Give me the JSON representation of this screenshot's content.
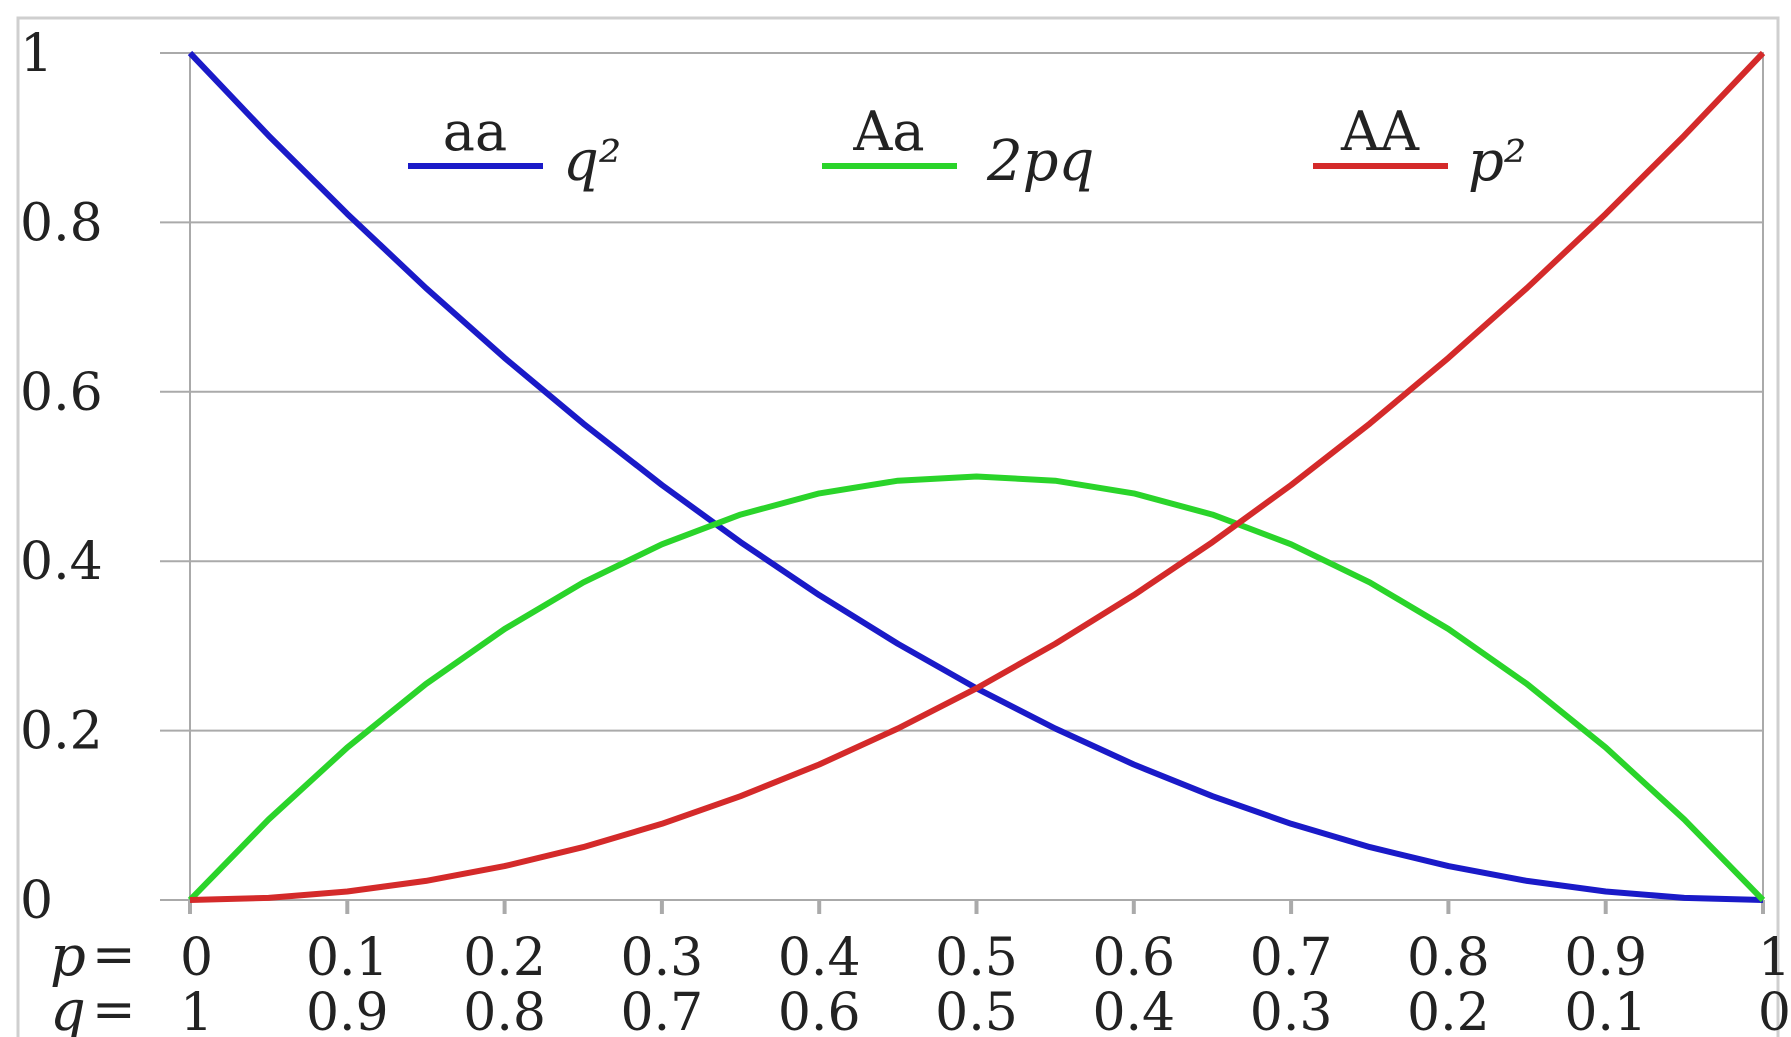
{
  "chart_data": {
    "type": "line",
    "x": [
      0,
      0.05,
      0.1,
      0.15,
      0.2,
      0.25,
      0.3,
      0.35,
      0.4,
      0.45,
      0.5,
      0.55,
      0.6,
      0.65,
      0.7,
      0.75,
      0.8,
      0.85,
      0.9,
      0.95,
      1
    ],
    "series": [
      {
        "genotype": "aa",
        "formula": "q²",
        "color": "#1a1ac8",
        "values": [
          1,
          0.9025,
          0.81,
          0.7225,
          0.64,
          0.5625,
          0.49,
          0.4225,
          0.36,
          0.3025,
          0.25,
          0.2025,
          0.16,
          0.1225,
          0.09,
          0.0625,
          0.04,
          0.0225,
          0.01,
          0.0025,
          0
        ]
      },
      {
        "genotype": "Aa",
        "formula": "2pq",
        "color": "#2ad42a",
        "values": [
          0,
          0.095,
          0.18,
          0.255,
          0.32,
          0.375,
          0.42,
          0.455,
          0.48,
          0.495,
          0.5,
          0.495,
          0.48,
          0.455,
          0.42,
          0.375,
          0.32,
          0.255,
          0.18,
          0.095,
          0
        ]
      },
      {
        "genotype": "AA",
        "formula": "p²",
        "color": "#d42a2a",
        "values": [
          0,
          0.0025,
          0.01,
          0.0225,
          0.04,
          0.0625,
          0.09,
          0.1225,
          0.16,
          0.2025,
          0.25,
          0.3025,
          0.36,
          0.4225,
          0.49,
          0.5625,
          0.64,
          0.7225,
          0.81,
          0.9025,
          1
        ]
      }
    ],
    "xlim": [
      0,
      1
    ],
    "ylim": [
      0,
      1
    ],
    "y_ticks": [
      {
        "v": 0,
        "label": "0"
      },
      {
        "v": 0.2,
        "label": "0.2"
      },
      {
        "v": 0.4,
        "label": "0.4"
      },
      {
        "v": 0.6,
        "label": "0.6"
      },
      {
        "v": 0.8,
        "label": "0.8"
      },
      {
        "v": 1,
        "label": "1"
      }
    ],
    "x_ticks": [
      {
        "v": 0,
        "p": "0",
        "q": "1"
      },
      {
        "v": 0.1,
        "p": "0.1",
        "q": "0.9"
      },
      {
        "v": 0.2,
        "p": "0.2",
        "q": "0.8"
      },
      {
        "v": 0.3,
        "p": "0.3",
        "q": "0.7"
      },
      {
        "v": 0.4,
        "p": "0.4",
        "q": "0.6"
      },
      {
        "v": 0.5,
        "p": "0.5",
        "q": "0.5"
      },
      {
        "v": 0.6,
        "p": "0.6",
        "q": "0.4"
      },
      {
        "v": 0.7,
        "p": "0.7",
        "q": "0.3"
      },
      {
        "v": 0.8,
        "p": "0.8",
        "q": "0.2"
      },
      {
        "v": 0.9,
        "p": "0.9",
        "q": "0.1"
      },
      {
        "v": 1,
        "p": "1",
        "q": "0"
      }
    ],
    "x_axis_names": {
      "p": "p",
      "q": "q"
    },
    "equals_sign": "=",
    "grid": "horizontal",
    "legend_placement": "top"
  }
}
